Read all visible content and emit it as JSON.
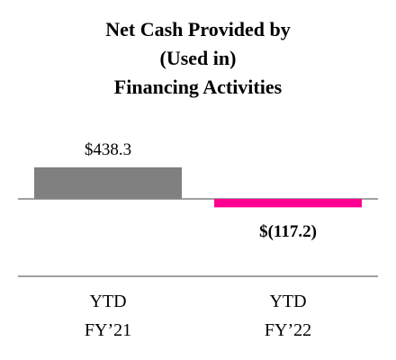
{
  "chart_data": {
    "type": "bar",
    "title": "Net Cash Provided by\n(Used in)\nFinancing Activities",
    "categories": [
      "YTD\nFY’21",
      "YTD\nFY’22"
    ],
    "values": [
      438.3,
      -117.2
    ],
    "value_labels": [
      "$438.3",
      "$(117.2)"
    ],
    "colors": [
      "#808080",
      "#ff0090"
    ]
  }
}
